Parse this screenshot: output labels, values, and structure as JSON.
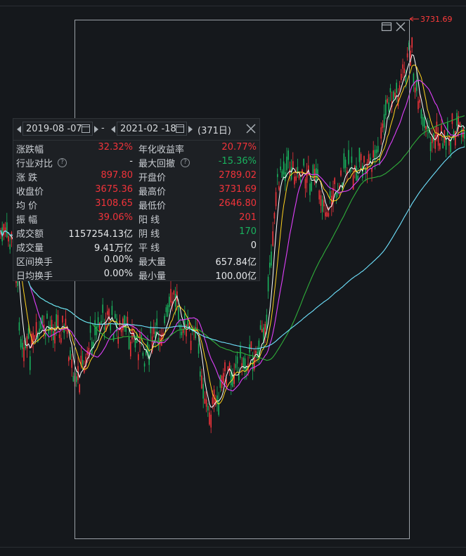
{
  "selection": {
    "high_price_label": "3731.69"
  },
  "panel": {
    "start_date": "2019-08 -07",
    "end_date": "2021-02 -18",
    "separator": "-",
    "days": "(371日)",
    "rows": [
      {
        "l1": "涨跌幅",
        "v1": "32.32%",
        "c1": "red",
        "l2": "年化收益率",
        "v2": "20.77%",
        "c2": "red"
      },
      {
        "l1": "行业对比",
        "v1": "-",
        "c1": "white",
        "l2": "最大回撤",
        "v2": "-15.36%",
        "c2": "green"
      },
      {
        "l1": "涨  跌",
        "v1": "897.80",
        "c1": "red",
        "l2": "开盘价",
        "v2": "2789.02",
        "c2": "red"
      },
      {
        "l1": "收盘价",
        "v1": "3675.36",
        "c1": "red",
        "l2": "最高价",
        "v2": "3731.69",
        "c2": "red"
      },
      {
        "l1": "均  价",
        "v1": "3108.65",
        "c1": "red",
        "l2": "最低价",
        "v2": "2646.80",
        "c2": "red"
      },
      {
        "l1": "振  幅",
        "v1": "39.06%",
        "c1": "red",
        "l2": "阳  线",
        "v2": "201",
        "c2": "red"
      },
      {
        "l1": "成交额",
        "v1": "1157254.13亿",
        "c1": "white",
        "l2": "阴  线",
        "v2": "170",
        "c2": "green"
      },
      {
        "l1": "成交量",
        "v1": "9.41万亿",
        "c1": "white",
        "l2": "平  线",
        "v2": "0",
        "c2": "white"
      },
      {
        "l1": "区间换手",
        "v1": "0.00%",
        "c1": "white",
        "l2": "最大量",
        "v2": "657.84亿",
        "c2": "white"
      },
      {
        "l1": "日均换手",
        "v1": "0.00%",
        "c1": "white",
        "l2": "最小量",
        "v2": "100.00亿",
        "c2": "white"
      }
    ],
    "help_mark": "?"
  },
  "colors": {
    "up": "#f1333a",
    "down": "#19b25e",
    "ma5": "#ffffff",
    "ma10": "#ffd21f",
    "ma20": "#e040fb",
    "ma60": "#2fae3a",
    "ma120": "#6fe3ff"
  }
}
